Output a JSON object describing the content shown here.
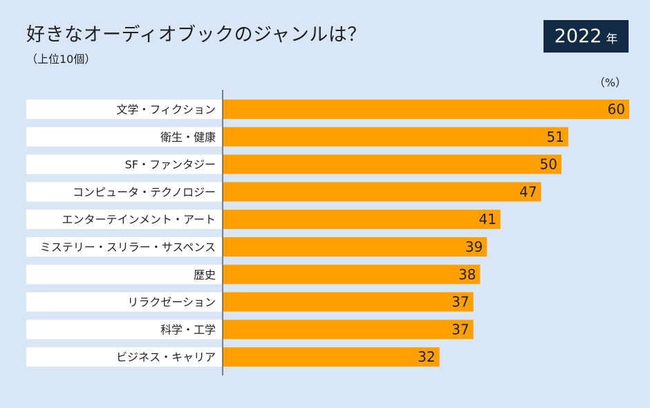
{
  "header": {
    "title": "好きなオーディオブックのジャンルは？",
    "subtitle": "（上位10個）",
    "year": "2022",
    "year_unit": "年"
  },
  "colors": {
    "background": "#d9e6f5",
    "bar": "#ffa000",
    "label_box": "#ffffff",
    "axis": "#5a5f66",
    "badge": "#132a45"
  },
  "chart_data": {
    "type": "bar",
    "orientation": "horizontal",
    "title": "好きなオーディオブックのジャンルは？",
    "subtitle": "（上位10個）",
    "unit": "（%）",
    "categories": [
      "文学・フィクション",
      "衛生・健康",
      "SF・ファンタジー",
      "コンピュータ・テクノロジー",
      "エンターテインメント・アート",
      "ミステリー・スリラー・サスペンス",
      "歴史",
      "リラクゼーション",
      "科学・工学",
      "ビジネス・キャリア"
    ],
    "values": [
      60,
      51,
      50,
      47,
      41,
      39,
      38,
      37,
      37,
      32
    ],
    "xlim": [
      0,
      60
    ],
    "grid": false,
    "legend": "none"
  }
}
